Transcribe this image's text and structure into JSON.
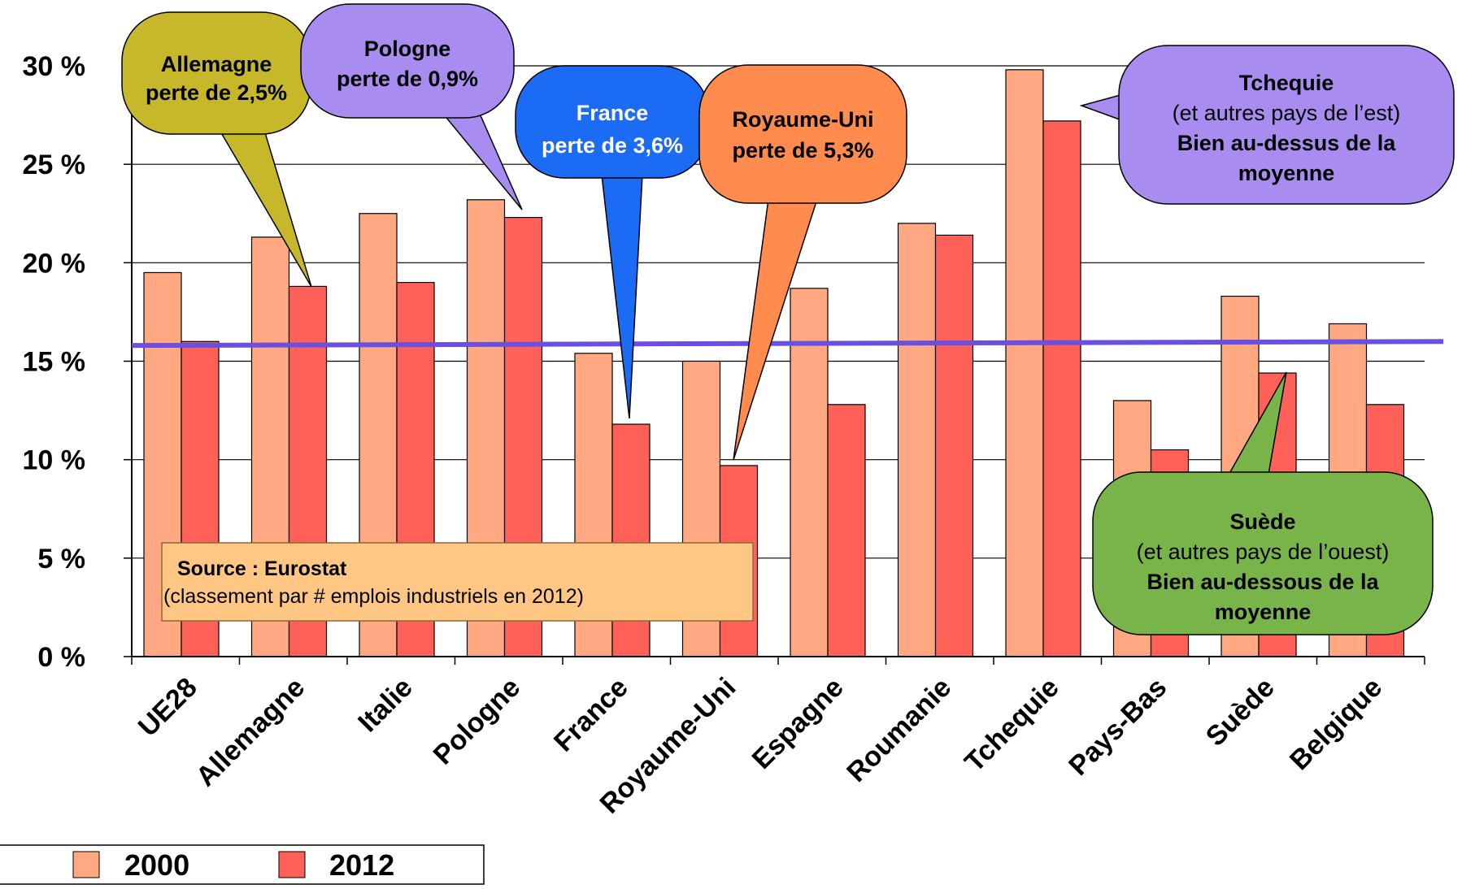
{
  "chart_data": {
    "type": "bar",
    "categories": [
      "UE28",
      "Allemagne",
      "Italie",
      "Pologne",
      "France",
      "Royaume-Uni",
      "Espagne",
      "Roumanie",
      "Tchequie",
      "Pays-Bas",
      "Suède",
      "Belgique"
    ],
    "series": [
      {
        "name": "2000",
        "values": [
          19.5,
          21.3,
          22.5,
          23.2,
          15.4,
          15.0,
          18.7,
          22.0,
          29.8,
          13.0,
          18.3,
          16.9
        ]
      },
      {
        "name": "2012",
        "values": [
          16.0,
          18.8,
          19.0,
          22.3,
          11.8,
          9.7,
          12.8,
          21.4,
          27.2,
          10.5,
          14.4,
          12.8
        ]
      }
    ],
    "ylim": [
      0,
      30
    ],
    "yticks": [
      "0 %",
      "5 %",
      "10 %",
      "15 %",
      "20 %",
      "25 %",
      "30 %"
    ],
    "ytick_values": [
      0,
      5,
      10,
      15,
      20,
      25,
      30
    ],
    "average_line": {
      "start": 15.8,
      "end": 16.0
    },
    "grid": true,
    "legend": "bottom-left",
    "colors": {
      "2000": "#FFA882",
      "2012": "#FF6058",
      "average": "#6A4FE0"
    }
  },
  "source_box": {
    "title": "Source : Eurostat",
    "note": "(classement par # emplois industriels en 2012)"
  },
  "callouts": [
    {
      "id": "allemagne",
      "color": "#C6B82A",
      "text_color": "#000000",
      "lines": [
        {
          "t": "Allemagne",
          "b": true
        },
        {
          "t": "perte de 2,5%",
          "b": true
        }
      ]
    },
    {
      "id": "pologne",
      "color": "#A98CF0",
      "text_color": "#000000",
      "lines": [
        {
          "t": "Pologne",
          "b": true
        },
        {
          "t": "perte de 0,9%",
          "b": true
        }
      ]
    },
    {
      "id": "france",
      "color": "#1C6BF4",
      "text_color": "#ffffff",
      "lines": [
        {
          "t": "France",
          "b": true
        },
        {
          "t": "perte de 3,6%",
          "b": true
        }
      ]
    },
    {
      "id": "royaume-uni",
      "color": "#FF8C4E",
      "text_color": "#000000",
      "lines": [
        {
          "t": "Royaume-Uni",
          "b": true
        },
        {
          "t": "perte de 5,3%",
          "b": true
        }
      ]
    },
    {
      "id": "tchequie",
      "color": "#A98CF0",
      "text_color": "#000000",
      "lines": [
        {
          "t": "Tchequie",
          "b": true
        },
        {
          "t": "(et autres pays de l’est)",
          "b": false
        },
        {
          "t": "Bien au-dessus de la",
          "b": true
        },
        {
          "t": "moyenne",
          "b": true
        }
      ]
    },
    {
      "id": "suede",
      "color": "#78B44A",
      "text_color": "#000000",
      "lines": [
        {
          "t": "Suède",
          "b": true
        },
        {
          "t": "(et autres pays de l’ouest)",
          "b": false
        },
        {
          "t": "Bien au-dessous de la",
          "b": true
        },
        {
          "t": "moyenne",
          "b": true
        }
      ]
    }
  ]
}
